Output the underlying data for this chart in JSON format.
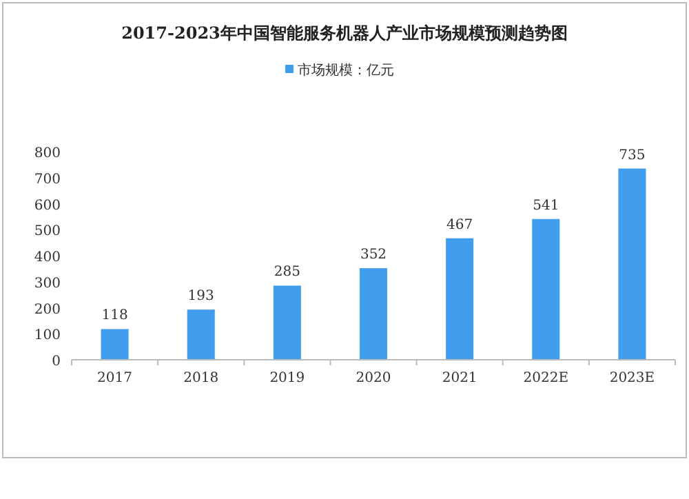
{
  "chart_data": {
    "type": "bar",
    "title": "2017-2023年中国智能服务机器人产业市场规模预测趋势图",
    "categories": [
      "2017",
      "2018",
      "2019",
      "2020",
      "2021",
      "2022E",
      "2023E"
    ],
    "series": [
      {
        "name": "市场规模：亿元",
        "color": "#419ded",
        "values": [
          118,
          193,
          285,
          352,
          467,
          541,
          735
        ]
      }
    ],
    "ylim": [
      0,
      800
    ],
    "yticks": [
      0,
      100,
      200,
      300,
      400,
      500,
      600,
      700,
      800
    ],
    "data_labels": true,
    "legend": "top"
  }
}
